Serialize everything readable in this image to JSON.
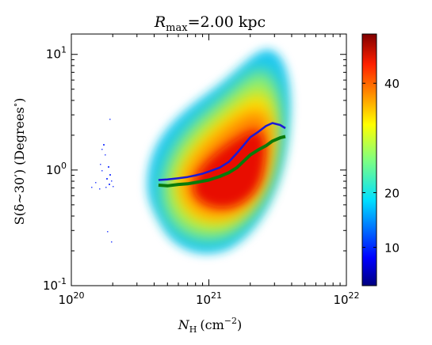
{
  "chart_data": {
    "type": "heatmap",
    "title": {
      "symbol": "R",
      "subscript": "max",
      "value": "=2.00 kpc"
    },
    "xlabel": {
      "symbol": "N",
      "subscript": "H",
      "unit": "(cm",
      "unit_exp": "−2",
      "unit_close": ")"
    },
    "ylabel": {
      "main": "S(δ∼30′) (Degrees",
      "sup": "∘",
      "close": ")"
    },
    "x_scale": "log",
    "y_scale": "log",
    "xlim": [
      1e+20,
      1e+22
    ],
    "ylim": [
      0.1,
      15
    ],
    "x_ticks": [
      {
        "value": 1e+20,
        "base": "10",
        "exp": "20"
      },
      {
        "value": 1e+21,
        "base": "10",
        "exp": "21"
      },
      {
        "value": 1e+22,
        "base": "10",
        "exp": "22"
      }
    ],
    "y_ticks": [
      {
        "value": 0.1,
        "base": "10",
        "exp": "-1"
      },
      {
        "value": 1,
        "base": "10",
        "exp": "0"
      },
      {
        "value": 10,
        "base": "10",
        "exp": "1"
      }
    ],
    "colorbar": {
      "range": [
        3,
        49
      ],
      "ticks": [
        "10",
        "20",
        "40"
      ],
      "tick_values": [
        10,
        20,
        40
      ],
      "colormap": "jet"
    },
    "series": [
      {
        "color": "#1a1ad6",
        "x": [
          4.3e+20,
          5e+20,
          6e+20,
          7e+20,
          8e+20,
          9e+20,
          1e+21,
          1.2e+21,
          1.4e+21,
          1.6e+21,
          1.8e+21,
          2e+21,
          2.3e+21,
          2.6e+21,
          2.9e+21,
          3.3e+21,
          3.6e+21
        ],
        "y": [
          0.82,
          0.83,
          0.85,
          0.87,
          0.9,
          0.93,
          0.97,
          1.05,
          1.18,
          1.4,
          1.65,
          1.92,
          2.15,
          2.4,
          2.55,
          2.45,
          2.3
        ]
      },
      {
        "color": "#0a7a0a",
        "x": [
          4.3e+20,
          5e+20,
          6e+20,
          7e+20,
          8e+20,
          9e+20,
          1e+21,
          1.2e+21,
          1.4e+21,
          1.6e+21,
          1.8e+21,
          2e+21,
          2.3e+21,
          2.6e+21,
          2.9e+21,
          3.3e+21,
          3.6e+21
        ],
        "y": [
          0.74,
          0.73,
          0.75,
          0.76,
          0.78,
          0.8,
          0.82,
          0.88,
          0.95,
          1.05,
          1.2,
          1.35,
          1.5,
          1.62,
          1.78,
          1.9,
          1.95
        ]
      }
    ]
  }
}
